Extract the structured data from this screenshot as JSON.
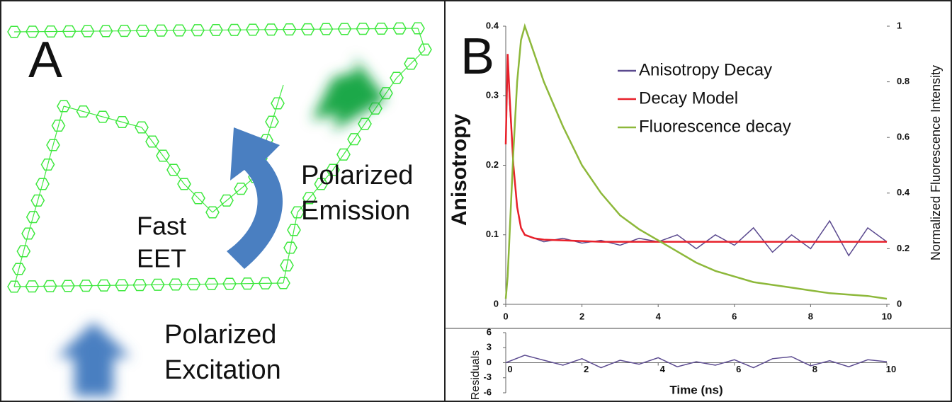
{
  "panel_a": {
    "label": "A",
    "energy_transfer": [
      "Fast",
      "EET"
    ],
    "emission": [
      "Polarized",
      "Emission"
    ],
    "excitation": [
      "Polarized",
      "Excitation"
    ]
  },
  "chart_data": [
    {
      "type": "line",
      "panel_label": "B",
      "y_label": "Anisotropy",
      "y2_label": "Normalized Fluorescence Intensity",
      "x": [
        0,
        0.05,
        0.1,
        0.2,
        0.3,
        0.4,
        0.5,
        0.75,
        1,
        1.5,
        2,
        2.5,
        3,
        3.5,
        4,
        4.5,
        5,
        5.5,
        6,
        6.5,
        7,
        7.5,
        8,
        8.5,
        9,
        9.5,
        10
      ],
      "series": [
        {
          "name": "Anisotropy Decay",
          "color": "#5b4a8f",
          "values": [
            0.23,
            0.35,
            0.29,
            0.2,
            0.14,
            0.11,
            0.1,
            0.095,
            0.09,
            0.095,
            0.088,
            0.092,
            0.085,
            0.095,
            0.09,
            0.1,
            0.08,
            0.1,
            0.085,
            0.11,
            0.075,
            0.1,
            0.08,
            0.12,
            0.07,
            0.11,
            0.09
          ]
        },
        {
          "name": "Decay Model",
          "color": "#e8202a",
          "values": [
            0.23,
            0.36,
            0.3,
            0.2,
            0.14,
            0.11,
            0.1,
            0.095,
            0.093,
            0.092,
            0.091,
            0.09,
            0.09,
            0.09,
            0.09,
            0.09,
            0.09,
            0.09,
            0.09,
            0.09,
            0.09,
            0.09,
            0.09,
            0.09,
            0.09,
            0.09,
            0.09
          ]
        },
        {
          "name": "Fluorescence decay",
          "color": "#8db83a",
          "axis": "y2",
          "values": [
            0.02,
            0.1,
            0.25,
            0.55,
            0.8,
            0.95,
            1,
            0.9,
            0.8,
            0.64,
            0.5,
            0.4,
            0.32,
            0.27,
            0.23,
            0.19,
            0.15,
            0.12,
            0.1,
            0.08,
            0.07,
            0.06,
            0.05,
            0.04,
            0.035,
            0.03,
            0.02
          ]
        }
      ],
      "xlim": [
        0,
        10
      ],
      "xticks": [
        0,
        2,
        4,
        6,
        8,
        10
      ],
      "ylim": [
        0,
        0.4
      ],
      "yticks": [
        0,
        0.1,
        0.2,
        0.3,
        0.4
      ],
      "y2lim": [
        0,
        1
      ],
      "y2ticks": [
        0,
        0.2,
        0.4,
        0.6,
        0.8,
        1
      ],
      "legend": "top-right"
    },
    {
      "type": "line",
      "y_label": "Residuals",
      "x_label": "Time (ns)",
      "x": [
        0,
        0.5,
        1,
        1.5,
        2,
        2.5,
        3,
        3.5,
        4,
        4.5,
        5,
        5.5,
        6,
        6.5,
        7,
        7.5,
        8,
        8.5,
        9,
        9.5,
        10
      ],
      "series": [
        {
          "color": "#5b4a8f",
          "values": [
            0,
            1.5,
            0.5,
            -0.5,
            0.8,
            -1,
            0.5,
            -0.3,
            1,
            -0.8,
            0.2,
            -0.5,
            0.6,
            -1,
            0.8,
            1.2,
            -0.6,
            0.4,
            -0.8,
            0.6,
            0.2
          ]
        }
      ],
      "xlim": [
        0,
        10
      ],
      "xticks": [
        0,
        2,
        4,
        6,
        8,
        10
      ],
      "ylim": [
        -6,
        6
      ],
      "yticks": [
        -6,
        -3,
        0,
        3,
        6
      ]
    }
  ]
}
